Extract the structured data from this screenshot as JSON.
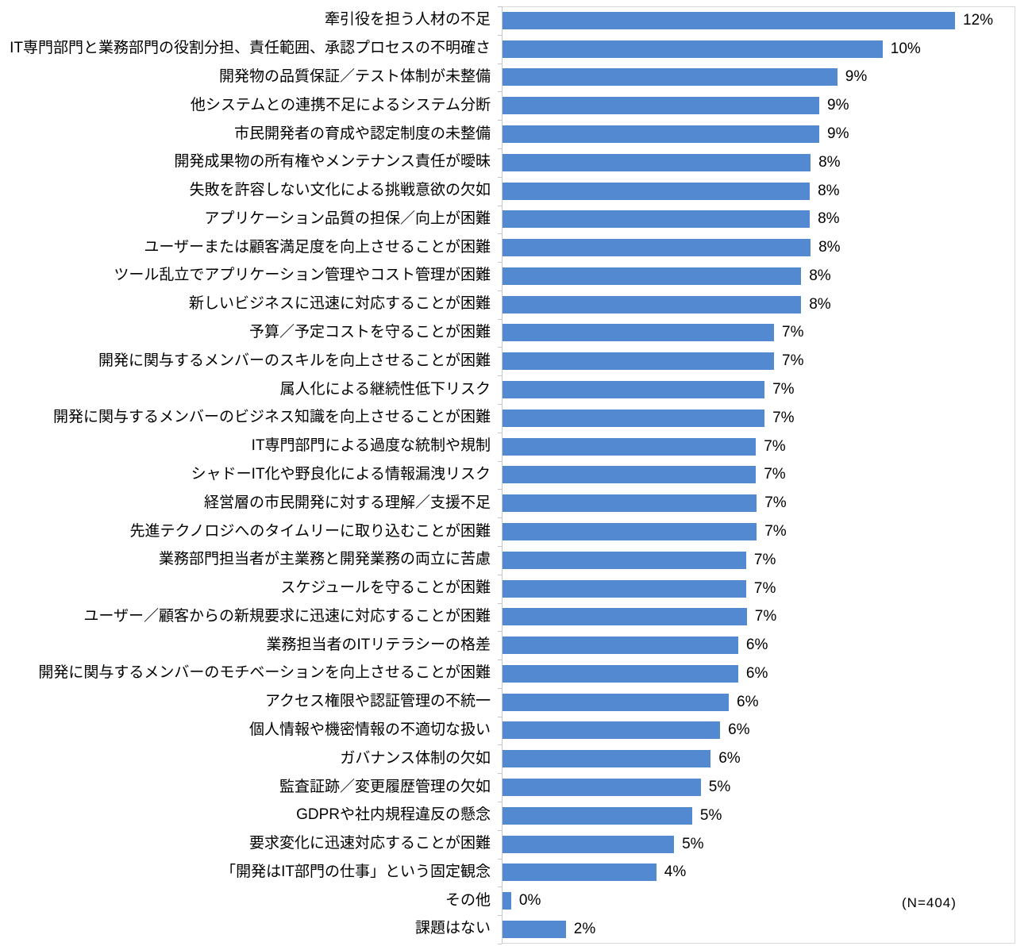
{
  "chart_data": {
    "type": "bar",
    "orientation": "horizontal",
    "title": "",
    "xlabel": "",
    "ylabel": "",
    "grid": false,
    "legend": "none",
    "data_labels": "outside-end",
    "axis_labels_visible": false,
    "xlim_pct": [
      0,
      13.64
    ],
    "annotation": "(N=404)",
    "categories": [
      "牽引役を担う人材の不足",
      "IT専門部門と業務部門の役割分担、責任範囲、承認プロセスの不明確さ",
      "開発物の品質保証／テスト体制が未整備",
      "他システムとの連携不足によるシステム分断",
      "市民開発者の育成や認定制度の未整備",
      "開発成果物の所有権やメンテナンス責任が曖昧",
      "失敗を許容しない文化による挑戦意欲の欠如",
      "アプリケーション品質の担保／向上が困難",
      "ユーザーまたは顧客満足度を向上させることが困難",
      "ツール乱立でアプリケーション管理やコスト管理が困難",
      "新しいビジネスに迅速に対応することが困難",
      "予算／予定コストを守ることが困難",
      "開発に関与するメンバーのスキルを向上させることが困難",
      "属人化による継続性低下リスク",
      "開発に関与するメンバーのビジネス知識を向上させることが困難",
      "IT専門部門による過度な統制や規制",
      "シャドーIT化や野良化による情報漏洩リスク",
      "経営層の市民開発に対する理解／支援不足",
      "先進テクノロジへのタイムリーに取り込むことが困難",
      "業務部門担当者が主業務と開発業務の両立に苦慮",
      "スケジュールを守ることが困難",
      "ユーザー／顧客からの新規要求に迅速に対応することが困難",
      "業務担当者のITリテラシーの格差",
      "開発に関与するメンバーのモチベーションを向上させることが困難",
      "アクセス権限や認証管理の不統一",
      "個人情報や機密情報の不適切な扱い",
      "ガバナンス体制の欠如",
      "監査証跡／変更履歴管理の欠如",
      "GDPRや社内規程違反の懸念",
      "要求変化に迅速対応することが困難",
      "「開発はIT部門の仕事」という固定観念",
      "その他",
      "課題はない"
    ],
    "values": [
      12,
      10,
      9,
      9,
      9,
      8,
      8,
      8,
      8,
      8,
      8,
      7,
      7,
      7,
      7,
      7,
      7,
      7,
      7,
      7,
      7,
      7,
      6,
      6,
      6,
      6,
      6,
      5,
      5,
      5,
      4,
      0,
      2
    ],
    "value_labels": [
      "12%",
      "10%",
      "9%",
      "9%",
      "9%",
      "8%",
      "8%",
      "8%",
      "8%",
      "8%",
      "8%",
      "7%",
      "7%",
      "7%",
      "7%",
      "7%",
      "7%",
      "7%",
      "7%",
      "7%",
      "7%",
      "7%",
      "6%",
      "6%",
      "6%",
      "6%",
      "6%",
      "5%",
      "5%",
      "5%",
      "4%",
      "0%",
      "2%"
    ],
    "values_precise_pct": [
      12.0,
      10.08,
      8.88,
      8.4,
      8.4,
      8.17,
      8.15,
      8.15,
      8.17,
      7.92,
      7.92,
      7.2,
      7.2,
      6.95,
      6.95,
      6.72,
      6.72,
      6.74,
      6.74,
      6.46,
      6.46,
      6.48,
      6.25,
      6.25,
      6.0,
      5.77,
      5.52,
      5.26,
      5.03,
      4.55,
      4.08,
      0.23,
      1.68
    ]
  },
  "style": {
    "bar_color": "#5389D0",
    "plot_border_color": "#D9D9D9",
    "axis_color": "#C6C6C6",
    "text_color": "#000000",
    "background": "#FFFFFF"
  }
}
